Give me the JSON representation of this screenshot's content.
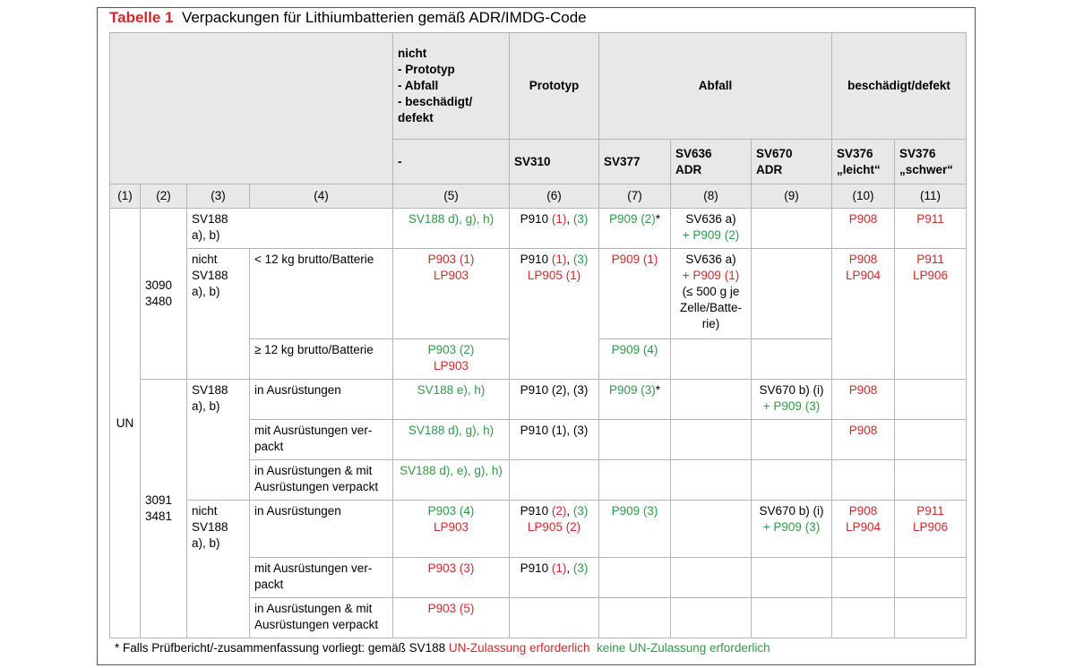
{
  "title": {
    "label": "Tabelle 1",
    "text": "Verpackungen für Lithiumbatterien gemäß ADR/IMDG-Code"
  },
  "header": {
    "row1": {
      "5": "nicht\n- Prototyp\n- Abfall\n- beschädigt/\ndefekt",
      "6": "Prototyp",
      "7": "Abfall",
      "10": "beschädigt/defekt"
    },
    "row2": {
      "5": "-",
      "6": "SV310",
      "7": "SV377",
      "8": "SV636\nADR",
      "9": "SV670\nADR",
      "10": "SV376\n„leicht“",
      "11": "SV376\n„schwer“"
    }
  },
  "numbers": [
    "(1)",
    "(2)",
    "(3)",
    "(4)",
    "(5)",
    "(6)",
    "(7)",
    "(8)",
    "(9)",
    "(10)",
    "(11)"
  ],
  "rows": [
    {
      "1": "UN",
      "2": "3090\n3480",
      "3": "SV188\na), b)",
      "5": [
        {
          "text": "SV188 d), g), h)",
          "color": "#2f9a46"
        }
      ],
      "6": [
        "P910 ",
        {
          "text": "(1)",
          "color": "#d3282b"
        },
        ", ",
        {
          "text": "(3)",
          "color": "#2f9a46"
        }
      ],
      "7": [
        {
          "text": "P909 (2)",
          "color": "#2f9a46"
        },
        "*"
      ],
      "8": [
        "SV636 a)\n",
        {
          "text": "+ P909 (2)",
          "color": "#2f9a46"
        }
      ],
      "10": [
        {
          "text": "P908",
          "color": "#d3282b"
        }
      ],
      "11": [
        {
          "text": "P911",
          "color": "#d3282b"
        }
      ]
    },
    {
      "3": "nicht\nSV188\na), b)",
      "4": "< 12 kg brutto/Batterie",
      "5": [
        {
          "text": "P903 (1)\nLP903",
          "color": "#d3282b"
        }
      ],
      "6": [
        "P910 ",
        {
          "text": "(1)",
          "color": "#d3282b"
        },
        ", ",
        {
          "text": "(3)",
          "color": "#2f9a46"
        },
        "\n",
        {
          "text": "LP905 (1)",
          "color": "#d3282b"
        }
      ],
      "7": [
        {
          "text": "P909 (1)",
          "color": "#d3282b"
        }
      ],
      "8": [
        "SV636 a)\n",
        {
          "text": "+ P909 (1)",
          "color": "#d3282b"
        },
        "\n(≤ 500 g je\nZelle/Batte-\nrie)"
      ],
      "10": [
        {
          "text": "P908\nLP904",
          "color": "#d3282b"
        }
      ],
      "11": [
        {
          "text": "P911\nLP906",
          "color": "#d3282b"
        }
      ]
    },
    {
      "4": "≥ 12 kg brutto/Batterie",
      "5": [
        {
          "text": "P903 (2)",
          "color": "#2f9a46"
        },
        "\n",
        {
          "text": "LP903",
          "color": "#d3282b"
        }
      ],
      "7": [
        {
          "text": "P909 (4)",
          "color": "#2f9a46"
        }
      ]
    },
    {
      "2": "3091\n3481",
      "3": "SV188\na), b)",
      "4": "in Ausrüstungen",
      "5": [
        {
          "text": "SV188 e), h)",
          "color": "#2f9a46"
        }
      ],
      "6": "P910 (2), (3)",
      "7": [
        {
          "text": "P909 (3)",
          "color": "#2f9a46"
        },
        "*"
      ],
      "9": [
        "SV670 b) (i)\n",
        {
          "text": "+ P909 (3)",
          "color": "#2f9a46"
        }
      ],
      "10": [
        {
          "text": "P908",
          "color": "#d3282b"
        }
      ]
    },
    {
      "4": "mit Ausrüstungen ver-\npackt",
      "5": [
        {
          "text": "SV188 d), g), h)",
          "color": "#2f9a46"
        }
      ],
      "6": "P910 (1), (3)",
      "10": [
        {
          "text": "P908",
          "color": "#d3282b"
        }
      ]
    },
    {
      "4": "in Ausrüstungen & mit\nAusrüstungen verpackt",
      "5": [
        {
          "text": "SV188 d), e), g), h)",
          "color": "#2f9a46"
        }
      ]
    },
    {
      "3": "nicht\nSV188\na), b)",
      "4": "in Ausrüstungen",
      "5": [
        {
          "text": "P903 (4)",
          "color": "#2f9a46"
        },
        "\n",
        {
          "text": "LP903",
          "color": "#d3282b"
        }
      ],
      "6": [
        "P910 ",
        {
          "text": "(2)",
          "color": "#d3282b"
        },
        ", ",
        {
          "text": "(3)",
          "color": "#2f9a46"
        },
        "\n",
        {
          "text": "LP905 (2)",
          "color": "#d3282b"
        }
      ],
      "7": [
        {
          "text": "P909 (3)",
          "color": "#2f9a46"
        }
      ],
      "9": [
        "SV670 b) (i)\n",
        {
          "text": "+ P909 (3)",
          "color": "#2f9a46"
        }
      ],
      "10": [
        {
          "text": "P908\nLP904",
          "color": "#d3282b"
        }
      ],
      "11": [
        {
          "text": "P911\nLP906",
          "color": "#d3282b"
        }
      ]
    },
    {
      "4": "mit Ausrüstungen ver-\npackt",
      "5": [
        {
          "text": "P903 (3)",
          "color": "#d3282b"
        }
      ],
      "6": [
        "P910 ",
        {
          "text": "(1)",
          "color": "#d3282b"
        },
        ", ",
        {
          "text": "(3)",
          "color": "#2f9a46"
        }
      ]
    },
    {
      "4": "in Ausrüstungen & mit\nAusrüstungen verpackt",
      "5": [
        {
          "text": "P903 (5)",
          "color": "#d3282b"
        }
      ]
    }
  ],
  "footnote": [
    "* Falls Prüfbericht/-zusammenfassung vorliegt: gemäß SV188 ",
    {
      "text": "UN-Zulassung erforderlich",
      "color": "#d3282b"
    },
    "  ",
    {
      "text": "keine UN-Zulassung erforderlich",
      "color": "#2f9a46"
    }
  ]
}
